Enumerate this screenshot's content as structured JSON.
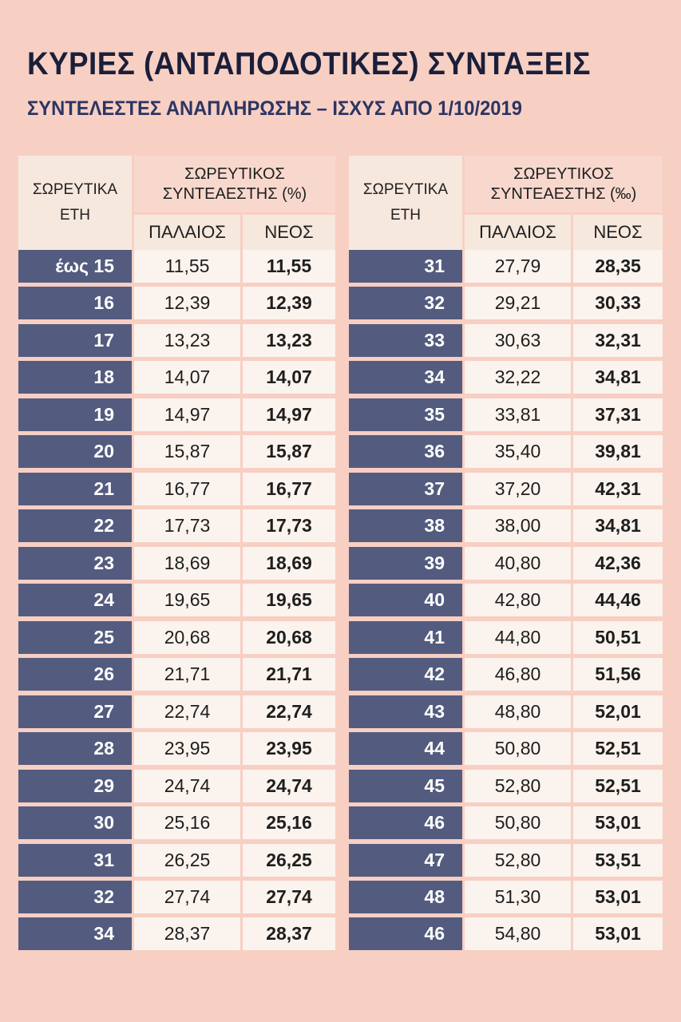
{
  "title": "ΚΥΡΙΕΣ (ΑΝΤΑΠΟΔΟΤΙΚΕΣ) ΣΥΝΤΑΞΕΙΣ",
  "subtitle": "ΣΥΝΤΕΛΕΣΤΕΣ ΑΝΑΠΛΗΡΩΣΗΣ – ΙΣΧΥΣ ΑΠΟ 1/10/2019",
  "left_table": {
    "header": {
      "years_line1": "ΣΩΡΕΥΤΙΚΑ",
      "years_line2": "ΕΤΗ",
      "coef_line1": "ΣΩΡΕΥΤΙΚΟΣ",
      "coef_line2": "ΣΥΝΤΕΑΕΣΤΗΣ (%)",
      "old": "ΠΑΛΑΙΟΣ",
      "new": "ΝΕΟΣ"
    },
    "rows": [
      {
        "years": "έως 15",
        "old": "11,55",
        "new": "11,55"
      },
      {
        "years": "16",
        "old": "12,39",
        "new": "12,39"
      },
      {
        "years": "17",
        "old": "13,23",
        "new": "13,23"
      },
      {
        "years": "18",
        "old": "14,07",
        "new": "14,07"
      },
      {
        "years": "19",
        "old": "14,97",
        "new": "14,97"
      },
      {
        "years": "20",
        "old": "15,87",
        "new": "15,87"
      },
      {
        "years": "21",
        "old": "16,77",
        "new": "16,77"
      },
      {
        "years": "22",
        "old": "17,73",
        "new": "17,73"
      },
      {
        "years": "23",
        "old": "18,69",
        "new": "18,69"
      },
      {
        "years": "24",
        "old": "19,65",
        "new": "19,65"
      },
      {
        "years": "25",
        "old": "20,68",
        "new": "20,68"
      },
      {
        "years": "26",
        "old": "21,71",
        "new": "21,71"
      },
      {
        "years": "27",
        "old": "22,74",
        "new": "22,74"
      },
      {
        "years": "28",
        "old": "23,95",
        "new": "23,95"
      },
      {
        "years": "29",
        "old": "24,74",
        "new": "24,74"
      },
      {
        "years": "30",
        "old": "25,16",
        "new": "25,16"
      },
      {
        "years": "31",
        "old": "26,25",
        "new": "26,25"
      },
      {
        "years": "32",
        "old": "27,74",
        "new": "27,74"
      },
      {
        "years": "34",
        "old": "28,37",
        "new": "28,37"
      }
    ]
  },
  "right_table": {
    "header": {
      "years_line1": "ΣΩΡΕΥΤΙΚΑ",
      "years_line2": "ΕΤΗ",
      "coef_line1": "ΣΩΡΕΥΤΙΚΟΣ",
      "coef_line2": "ΣΥΝΤΕΑΕΣΤΗΣ (‰)",
      "old": "ΠΑΛΑΙΟΣ",
      "new": "ΝΕΟΣ"
    },
    "rows": [
      {
        "years": "31",
        "old": "27,79",
        "new": "28,35"
      },
      {
        "years": "32",
        "old": "29,21",
        "new": "30,33"
      },
      {
        "years": "33",
        "old": "30,63",
        "new": "32,31"
      },
      {
        "years": "34",
        "old": "32,22",
        "new": "34,81"
      },
      {
        "years": "35",
        "old": "33,81",
        "new": "37,31"
      },
      {
        "years": "36",
        "old": "35,40",
        "new": "39,81"
      },
      {
        "years": "37",
        "old": "37,20",
        "new": "42,31"
      },
      {
        "years": "38",
        "old": "38,00",
        "new": "34,81"
      },
      {
        "years": "39",
        "old": "40,80",
        "new": "42,36"
      },
      {
        "years": "40",
        "old": "42,80",
        "new": "44,46"
      },
      {
        "years": "41",
        "old": "44,80",
        "new": "50,51"
      },
      {
        "years": "42",
        "old": "46,80",
        "new": "51,56"
      },
      {
        "years": "43",
        "old": "48,80",
        "new": "52,01"
      },
      {
        "years": "44",
        "old": "50,80",
        "new": "52,51"
      },
      {
        "years": "45",
        "old": "52,80",
        "new": "52,51"
      },
      {
        "years": "46",
        "old": "50,80",
        "new": "53,01"
      },
      {
        "years": "47",
        "old": "52,80",
        "new": "53,51"
      },
      {
        "years": "48",
        "old": "51,30",
        "new": "53,01"
      },
      {
        "years": "46",
        "old": "54,80",
        "new": "53,01"
      }
    ]
  }
}
